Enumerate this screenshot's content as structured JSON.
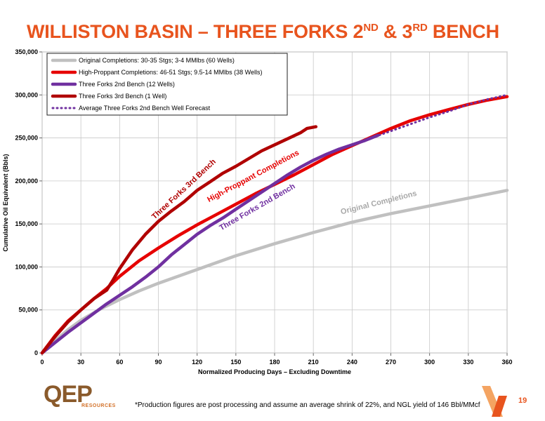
{
  "title": {
    "part1": "WILLISTON BASIN – THREE FORKS 2",
    "sup1": "ND",
    "part2": " & 3",
    "sup2": "RD",
    "part3": " BENCH"
  },
  "footnote": "*Production figures are post processing and assume an average shrink of 22%, and NGL yield of 146 Bbl/MMcf",
  "page_number": "19",
  "logo": {
    "name": "QEP",
    "sub": "RESOURCES",
    "color": "#8a5a2b",
    "accent": "#d3722a"
  },
  "colors": {
    "title": "#e8541e"
  },
  "chart_data": {
    "type": "line",
    "xlabel": "Normalized Producing Days – Excluding Downtime",
    "ylabel": "Cumulative Oil Equivalent (Bbls)",
    "xlim": [
      0,
      360
    ],
    "ylim": [
      0,
      350000
    ],
    "xticks": [
      0,
      30,
      60,
      90,
      120,
      150,
      180,
      210,
      240,
      270,
      300,
      330,
      360
    ],
    "yticks": [
      0,
      50000,
      100000,
      150000,
      200000,
      250000,
      300000,
      350000
    ],
    "ytick_labels": [
      "0",
      "50,000",
      "100,000",
      "150,000",
      "200,000",
      "250,000",
      "300,000",
      "350,000"
    ],
    "grid": true,
    "legend_position": "top-left",
    "series": [
      {
        "name": "Original Completions: 30-35 Stgs; 3-4 MMlbs (60 Wells)",
        "color": "#c0c0c0",
        "style": "solid",
        "annotation": "Original Completions",
        "points": [
          [
            0,
            0
          ],
          [
            10,
            14000
          ],
          [
            20,
            27000
          ],
          [
            30,
            38000
          ],
          [
            45,
            51000
          ],
          [
            60,
            62000
          ],
          [
            75,
            72000
          ],
          [
            90,
            81000
          ],
          [
            120,
            97000
          ],
          [
            150,
            113000
          ],
          [
            180,
            127000
          ],
          [
            210,
            140000
          ],
          [
            240,
            152000
          ],
          [
            270,
            162000
          ],
          [
            300,
            171000
          ],
          [
            330,
            180000
          ],
          [
            360,
            189000
          ]
        ]
      },
      {
        "name": "High-Proppant Completions: 46-51 Stgs; 9.5-14 MMlbs (38 Wells)",
        "color": "#e60000",
        "style": "solid",
        "annotation": "High-Proppant Completions",
        "points": [
          [
            0,
            0
          ],
          [
            10,
            20000
          ],
          [
            20,
            37000
          ],
          [
            30,
            50000
          ],
          [
            40,
            63000
          ],
          [
            50,
            75000
          ],
          [
            60,
            89000
          ],
          [
            75,
            107000
          ],
          [
            90,
            122000
          ],
          [
            105,
            136000
          ],
          [
            120,
            149000
          ],
          [
            135,
            161000
          ],
          [
            150,
            173000
          ],
          [
            165,
            185000
          ],
          [
            180,
            196000
          ],
          [
            195,
            207000
          ],
          [
            210,
            219000
          ],
          [
            225,
            231000
          ],
          [
            240,
            241000
          ],
          [
            255,
            251000
          ],
          [
            270,
            261000
          ],
          [
            285,
            270000
          ],
          [
            300,
            277000
          ],
          [
            315,
            283000
          ],
          [
            330,
            289000
          ],
          [
            345,
            294000
          ],
          [
            360,
            298000
          ]
        ]
      },
      {
        "name": "Three Forks 2nd Bench (12 Wells)",
        "color": "#7030a0",
        "style": "solid",
        "annotation": "Three Forks 2nd Bench",
        "points": [
          [
            0,
            0
          ],
          [
            10,
            12000
          ],
          [
            20,
            24000
          ],
          [
            30,
            35000
          ],
          [
            40,
            46000
          ],
          [
            50,
            57000
          ],
          [
            60,
            67000
          ],
          [
            70,
            77000
          ],
          [
            80,
            88000
          ],
          [
            90,
            100000
          ],
          [
            100,
            114000
          ],
          [
            110,
            126000
          ],
          [
            120,
            138000
          ],
          [
            130,
            148000
          ],
          [
            140,
            157000
          ],
          [
            150,
            167000
          ],
          [
            160,
            177000
          ],
          [
            170,
            187000
          ],
          [
            180,
            197000
          ],
          [
            190,
            207000
          ],
          [
            200,
            216000
          ],
          [
            210,
            224000
          ],
          [
            220,
            231000
          ],
          [
            230,
            237000
          ],
          [
            240,
            242000
          ],
          [
            250,
            247000
          ],
          [
            260,
            253000
          ]
        ]
      },
      {
        "name": "Three Forks 3rd Bench (1 Well)",
        "color": "#b00000",
        "style": "solid",
        "annotation": "Three Forks 3rd Bench",
        "points": [
          [
            0,
            0
          ],
          [
            10,
            19000
          ],
          [
            20,
            36000
          ],
          [
            30,
            50000
          ],
          [
            40,
            63000
          ],
          [
            50,
            73000
          ],
          [
            55,
            85000
          ],
          [
            60,
            98000
          ],
          [
            70,
            120000
          ],
          [
            80,
            138000
          ],
          [
            90,
            153000
          ],
          [
            100,
            165000
          ],
          [
            110,
            176000
          ],
          [
            120,
            189000
          ],
          [
            130,
            199000
          ],
          [
            140,
            209000
          ],
          [
            150,
            217000
          ],
          [
            160,
            226000
          ],
          [
            170,
            235000
          ],
          [
            180,
            242000
          ],
          [
            190,
            249000
          ],
          [
            200,
            256000
          ],
          [
            205,
            261000
          ],
          [
            212,
            263000
          ]
        ]
      },
      {
        "name": "Average Three Forks 2nd Bench Well Forecast",
        "color": "#7030a0",
        "style": "dotted",
        "points": [
          [
            255,
            250000
          ],
          [
            270,
            258000
          ],
          [
            285,
            266000
          ],
          [
            300,
            274000
          ],
          [
            315,
            281000
          ],
          [
            330,
            289000
          ],
          [
            345,
            295000
          ],
          [
            360,
            300000
          ]
        ]
      }
    ]
  }
}
